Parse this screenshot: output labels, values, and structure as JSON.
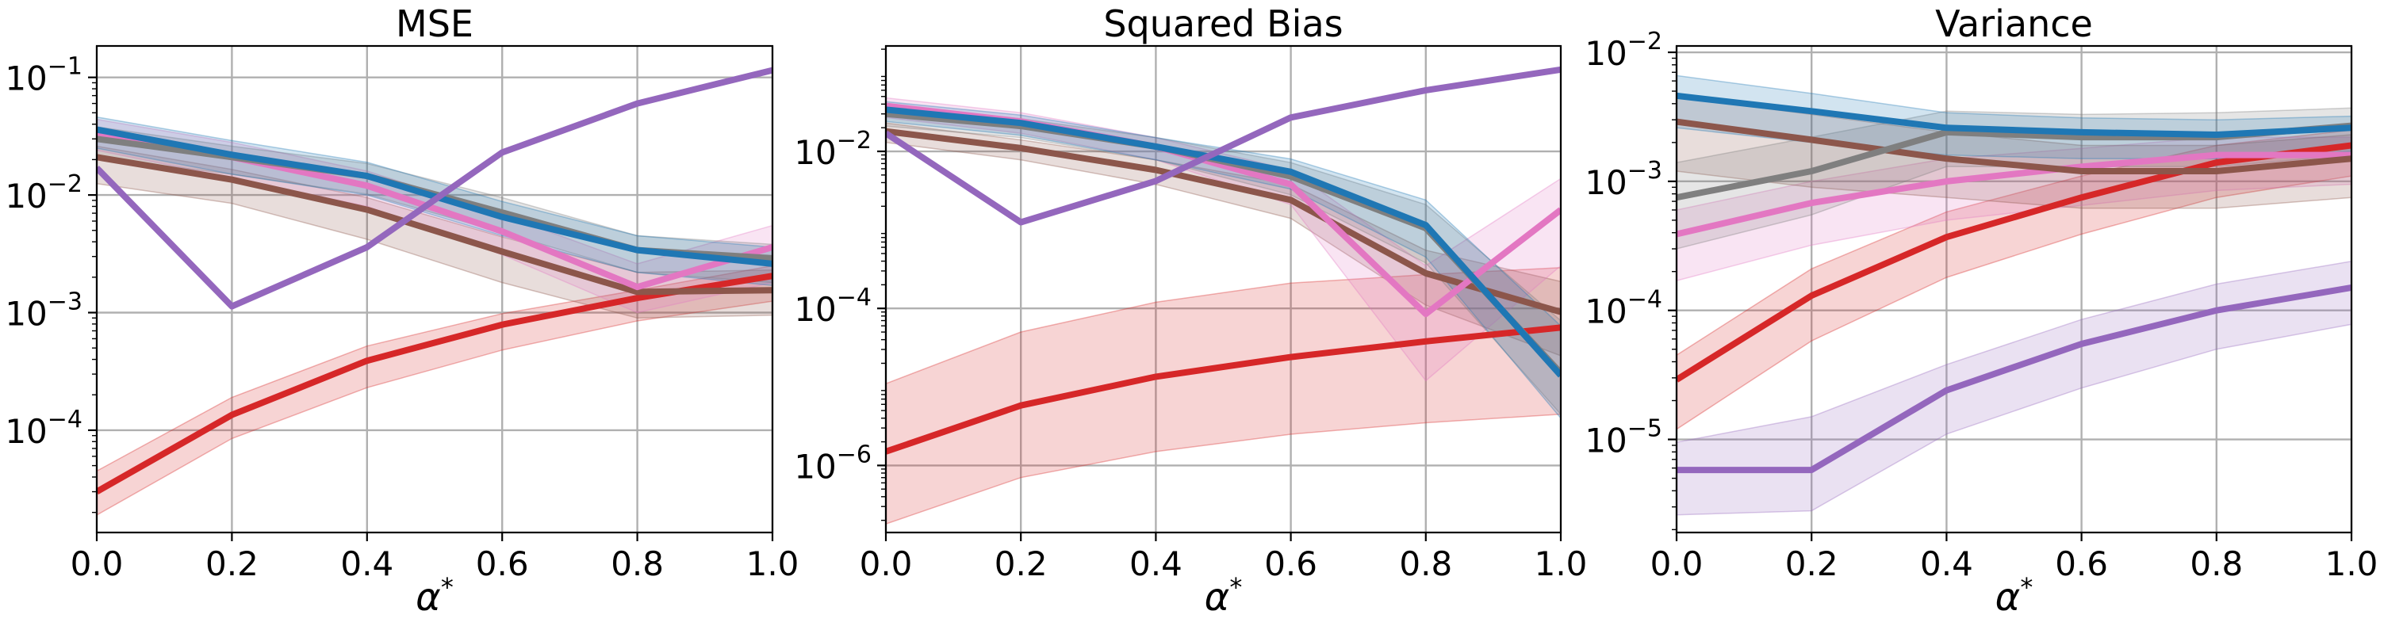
{
  "chart_data": [
    {
      "type": "line",
      "title": "MSE",
      "xlabel": "α*",
      "ylabel": "",
      "yscale": "log",
      "xlim": [
        0.0,
        1.0
      ],
      "ylim": [
        1.35e-05,
        0.185
      ],
      "grid": true,
      "x": [
        0.0,
        0.2,
        0.4,
        0.6,
        0.8,
        1.0
      ],
      "x_ticks": [
        "0.0",
        "0.2",
        "0.4",
        "0.6",
        "0.8",
        "1.0"
      ],
      "y_ticks": [
        {
          "base": "10",
          "exp": "−4",
          "value": 0.0001
        },
        {
          "base": "10",
          "exp": "−3",
          "value": 0.001
        },
        {
          "base": "10",
          "exp": "−2",
          "value": 0.01
        },
        {
          "base": "10",
          "exp": "−1",
          "value": 0.1
        }
      ],
      "series": [
        {
          "color": "#d62728",
          "values": [
            3e-05,
            0.000135,
            0.00039,
            0.00079,
            0.00133,
            0.00205
          ],
          "lower": [
            1.9e-05,
            8.5e-05,
            0.00023,
            0.00048,
            0.00085,
            0.00125
          ],
          "upper": [
            4.5e-05,
            0.00019,
            0.00052,
            0.00098,
            0.00155,
            0.0025
          ]
        },
        {
          "color": "#8c564b",
          "values": [
            0.021,
            0.0135,
            0.0075,
            0.0033,
            0.0015,
            0.00155
          ],
          "lower": [
            0.0125,
            0.0085,
            0.0042,
            0.0018,
            0.0009,
            0.00095
          ],
          "upper": [
            0.026,
            0.0165,
            0.0095,
            0.0044,
            0.0022,
            0.0023
          ]
        },
        {
          "color": "#e377c2",
          "values": [
            0.034,
            0.021,
            0.012,
            0.0049,
            0.00165,
            0.0036
          ],
          "lower": [
            0.024,
            0.014,
            0.008,
            0.0031,
            0.001,
            0.0018
          ],
          "upper": [
            0.044,
            0.028,
            0.016,
            0.0068,
            0.0026,
            0.0055
          ]
        },
        {
          "color": "#7f7f7f",
          "values": [
            0.03,
            0.021,
            0.0145,
            0.0071,
            0.0034,
            0.0029
          ],
          "lower": [
            0.021,
            0.015,
            0.0102,
            0.0048,
            0.0022,
            0.0018
          ],
          "upper": [
            0.038,
            0.026,
            0.0185,
            0.0095,
            0.0045,
            0.0038
          ]
        },
        {
          "color": "#1f77b4",
          "values": [
            0.036,
            0.022,
            0.0145,
            0.0065,
            0.0034,
            0.0026
          ],
          "lower": [
            0.025,
            0.015,
            0.01,
            0.0045,
            0.0022,
            0.0017
          ],
          "upper": [
            0.046,
            0.029,
            0.019,
            0.0088,
            0.0045,
            0.0036
          ]
        },
        {
          "color": "#9467bd",
          "values": [
            0.017,
            0.00113,
            0.0036,
            0.023,
            0.06,
            0.115
          ],
          "lower": null,
          "upper": null
        }
      ]
    },
    {
      "type": "line",
      "title": "Squared Bias",
      "xlabel": "α*",
      "ylabel": "",
      "yscale": "log",
      "xlim": [
        0.0,
        1.0
      ],
      "ylim": [
        1.4e-07,
        0.22
      ],
      "grid": true,
      "x": [
        0.0,
        0.2,
        0.4,
        0.6,
        0.8,
        1.0
      ],
      "x_ticks": [
        "0.0",
        "0.2",
        "0.4",
        "0.6",
        "0.8",
        "1.0"
      ],
      "y_ticks": [
        {
          "base": "10",
          "exp": "−6",
          "value": 1e-06
        },
        {
          "base": "10",
          "exp": "−4",
          "value": 0.0001
        },
        {
          "base": "10",
          "exp": "−2",
          "value": 0.01
        }
      ],
      "series": [
        {
          "color": "#d62728",
          "values": [
            1.5e-06,
            5.8e-06,
            1.35e-05,
            2.4e-05,
            3.8e-05,
            5.7e-05
          ],
          "lower": [
            1.8e-07,
            7e-07,
            1.5e-06,
            2.5e-06,
            3.5e-06,
            4.5e-06
          ],
          "upper": [
            1.1e-05,
            5e-05,
            0.00012,
            0.00021,
            0.00027,
            0.00033
          ]
        },
        {
          "color": "#8c564b",
          "values": [
            0.018,
            0.011,
            0.0058,
            0.0024,
            0.00028,
            9e-05
          ],
          "lower": [
            0.013,
            0.0078,
            0.0038,
            0.0014,
            0.00011,
            2.5e-05
          ],
          "upper": [
            0.023,
            0.014,
            0.0078,
            0.0038,
            0.00055,
            0.00022
          ]
        },
        {
          "color": "#e377c2",
          "values": [
            0.038,
            0.024,
            0.0115,
            0.0038,
            8.5e-05,
            0.0018
          ],
          "lower": [
            0.027,
            0.017,
            0.0078,
            0.0021,
            1.2e-05,
            0.00035
          ],
          "upper": [
            0.048,
            0.031,
            0.015,
            0.0058,
            0.00035,
            0.0045
          ]
        },
        {
          "color": "#7f7f7f",
          "values": [
            0.03,
            0.021,
            0.0115,
            0.0048,
            0.00105,
            1.5e-05
          ],
          "lower": [
            0.021,
            0.015,
            0.0078,
            0.0028,
            0.00038,
            4.5e-06
          ],
          "upper": [
            0.038,
            0.026,
            0.015,
            0.0072,
            0.0021,
            7e-05
          ]
        },
        {
          "color": "#1f77b4",
          "values": [
            0.034,
            0.023,
            0.0115,
            0.0055,
            0.00115,
            1.4e-05
          ],
          "lower": [
            0.024,
            0.016,
            0.0078,
            0.0033,
            0.00045,
            4e-06
          ],
          "upper": [
            0.043,
            0.029,
            0.015,
            0.008,
            0.0024,
            6e-05
          ]
        },
        {
          "color": "#9467bd",
          "values": [
            0.017,
            0.00125,
            0.0042,
            0.027,
            0.06,
            0.11
          ],
          "lower": null,
          "upper": null
        }
      ]
    },
    {
      "type": "line",
      "title": "Variance",
      "xlabel": "α*",
      "ylabel": "",
      "yscale": "log",
      "xlim": [
        0.0,
        1.0
      ],
      "ylim": [
        1.9e-06,
        0.0112
      ],
      "grid": true,
      "x": [
        0.0,
        0.2,
        0.4,
        0.6,
        0.8,
        1.0
      ],
      "x_ticks": [
        "0.0",
        "0.2",
        "0.4",
        "0.6",
        "0.8",
        "1.0"
      ],
      "y_ticks": [
        {
          "base": "10",
          "exp": "−5",
          "value": 1e-05
        },
        {
          "base": "10",
          "exp": "−4",
          "value": 0.0001
        },
        {
          "base": "10",
          "exp": "−3",
          "value": 0.001
        },
        {
          "base": "10",
          "exp": "−2",
          "value": 0.01
        }
      ],
      "series": [
        {
          "color": "#9467bd",
          "values": [
            5.8e-06,
            5.8e-06,
            2.4e-05,
            5.5e-05,
            0.0001,
            0.00015
          ],
          "lower": [
            2.6e-06,
            2.8e-06,
            1.1e-05,
            2.5e-05,
            5e-05,
            7.8e-05
          ],
          "upper": [
            9.5e-06,
            1.5e-05,
            3.8e-05,
            8.5e-05,
            0.00016,
            0.00024
          ]
        },
        {
          "color": "#d62728",
          "values": [
            2.9e-05,
            0.00013,
            0.00037,
            0.00075,
            0.0014,
            0.0019
          ],
          "lower": [
            1.2e-05,
            5.8e-05,
            0.00018,
            0.00039,
            0.00075,
            0.0011
          ],
          "upper": [
            4.5e-05,
            0.00021,
            0.00058,
            0.0011,
            0.0019,
            0.0025
          ]
        },
        {
          "color": "#e377c2",
          "values": [
            0.00039,
            0.00068,
            0.001,
            0.0013,
            0.0016,
            0.0016
          ],
          "lower": [
            0.00017,
            0.00032,
            0.0005,
            0.00065,
            0.00085,
            0.00095
          ],
          "upper": [
            0.0006,
            0.001,
            0.0015,
            0.0018,
            0.0022,
            0.0022
          ]
        },
        {
          "color": "#8c564b",
          "values": [
            0.0029,
            0.0021,
            0.0015,
            0.0012,
            0.0012,
            0.0015
          ],
          "lower": [
            0.0012,
            0.0009,
            0.00075,
            0.00062,
            0.00062,
            0.00075
          ],
          "upper": [
            0.0045,
            0.0033,
            0.0024,
            0.0019,
            0.0019,
            0.0023
          ]
        },
        {
          "color": "#7f7f7f",
          "values": [
            0.00075,
            0.0012,
            0.0024,
            0.0022,
            0.0022,
            0.0027
          ],
          "lower": [
            0.0003,
            0.00055,
            0.0013,
            0.0013,
            0.0013,
            0.0016
          ],
          "upper": [
            0.0014,
            0.0022,
            0.0035,
            0.0033,
            0.0034,
            0.0037
          ]
        },
        {
          "color": "#1f77b4",
          "values": [
            0.0046,
            0.0035,
            0.0026,
            0.0024,
            0.0023,
            0.0026
          ],
          "lower": [
            0.0026,
            0.002,
            0.0016,
            0.0015,
            0.0015,
            0.0017
          ],
          "upper": [
            0.0066,
            0.0048,
            0.0034,
            0.0031,
            0.003,
            0.0032
          ]
        }
      ]
    }
  ]
}
